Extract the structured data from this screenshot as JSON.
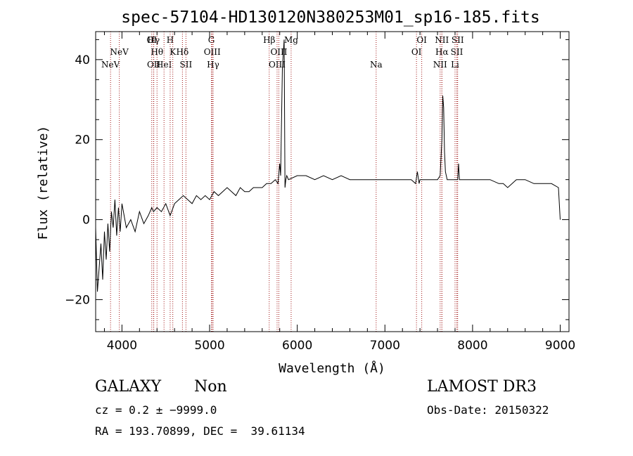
{
  "chart_data": {
    "type": "line",
    "title": "spec-57104-HD130120N380253M01_sp16-185.fits",
    "xlabel": "Wavelength (Å)",
    "ylabel": "Flux (relative)",
    "xlim": [
      3700,
      9100
    ],
    "ylim": [
      -28,
      47
    ],
    "xticks": [
      4000,
      5000,
      6000,
      7000,
      8000,
      9000
    ],
    "yticks": [
      -20,
      0,
      20,
      40
    ],
    "grid": false,
    "line_color": "#000000",
    "marker_color": "#a01414",
    "series": [
      {
        "x": [
          3700,
          3720,
          3740,
          3760,
          3780,
          3800,
          3820,
          3840,
          3860,
          3880,
          3900,
          3920,
          3940,
          3960,
          3980,
          4000,
          4050,
          4100,
          4150,
          4200,
          4250,
          4300,
          4340,
          4360,
          4400,
          4450,
          4500,
          4550,
          4600,
          4650,
          4700,
          4750,
          4800,
          4850,
          4900,
          4950,
          5000,
          5050,
          5100,
          5150,
          5200,
          5250,
          5300,
          5350,
          5400,
          5450,
          5500,
          5550,
          5600,
          5650,
          5700,
          5750,
          5780,
          5800,
          5810,
          5830,
          5850,
          5860,
          5870,
          5880,
          5900,
          6000,
          6100,
          6200,
          6300,
          6400,
          6500,
          6600,
          6700,
          6800,
          6900,
          7000,
          7100,
          7200,
          7300,
          7350,
          7370,
          7390,
          7400,
          7500,
          7600,
          7630,
          7650,
          7660,
          7670,
          7680,
          7690,
          7710,
          7750,
          7800,
          7830,
          7840,
          7850,
          7860,
          7870,
          7900,
          8000,
          8100,
          8200,
          8300,
          8350,
          8400,
          8500,
          8600,
          8700,
          8800,
          8900,
          8980,
          9000
        ],
        "y": [
          -2,
          -18,
          -12,
          -6,
          -15,
          -3,
          -10,
          -1,
          -8,
          2,
          -2,
          5,
          -4,
          3,
          -3,
          4,
          -2,
          0,
          -3,
          2,
          -1,
          1,
          3,
          2,
          3,
          2,
          4,
          1,
          4,
          5,
          6,
          5,
          4,
          6,
          5,
          6,
          5,
          7,
          6,
          7,
          8,
          7,
          6,
          8,
          7,
          7,
          8,
          8,
          8,
          9,
          9,
          10,
          9,
          14,
          11,
          38,
          45,
          8,
          10,
          11,
          10,
          11,
          11,
          10,
          11,
          10,
          11,
          10,
          10,
          10,
          10,
          10,
          10,
          10,
          10,
          9,
          12,
          9,
          10,
          10,
          10,
          11,
          20,
          31,
          28,
          17,
          12,
          10,
          10,
          10,
          10,
          14,
          10,
          10,
          10,
          10,
          10,
          10,
          10,
          9,
          9,
          8,
          10,
          10,
          9,
          9,
          9,
          8,
          0
        ]
      }
    ],
    "lines": [
      {
        "x": 3870,
        "label": "NeV",
        "row": 3
      },
      {
        "x": 3970,
        "label": "NeV",
        "row": 2
      },
      {
        "x": 4340,
        "label": "OI",
        "row": 1
      },
      {
        "x": 4361,
        "label": "Hγ",
        "row": 1
      },
      {
        "x": 4363,
        "label": "OII",
        "row": 3
      },
      {
        "x": 4400,
        "label": "Hθ",
        "row": 2
      },
      {
        "x": 4480,
        "label": "HeI",
        "row": 3
      },
      {
        "x": 4550,
        "label": "H",
        "row": 1
      },
      {
        "x": 4580,
        "label": "K",
        "row": 2
      },
      {
        "x": 4690,
        "label": "Hδ",
        "row": 2
      },
      {
        "x": 4730,
        "label": "SII",
        "row": 3
      },
      {
        "x": 5020,
        "label": "G",
        "row": 1
      },
      {
        "x": 5030,
        "label": "OIII",
        "row": 2
      },
      {
        "x": 5040,
        "label": "Hγ",
        "row": 3
      },
      {
        "x": 5680,
        "label": "Hβ",
        "row": 1
      },
      {
        "x": 5790,
        "label": "OIII",
        "row": 2
      },
      {
        "x": 5770,
        "label": "OIII",
        "row": 3
      },
      {
        "x": 5930,
        "label": "Mg",
        "row": 1
      },
      {
        "x": 6900,
        "label": "Na",
        "row": 3
      },
      {
        "x": 7420,
        "label": "OI",
        "row": 1
      },
      {
        "x": 7360,
        "label": "OI",
        "row": 2
      },
      {
        "x": 7650,
        "label": "NII",
        "row": 1
      },
      {
        "x": 7650,
        "label": "Hα",
        "row": 2
      },
      {
        "x": 7630,
        "label": "NII",
        "row": 3
      },
      {
        "x": 7830,
        "label": "SII",
        "row": 1
      },
      {
        "x": 7820,
        "label": "SII",
        "row": 2
      },
      {
        "x": 7800,
        "label": "Li",
        "row": 3
      }
    ]
  },
  "info": {
    "object_class": "GALAXY",
    "subclass": "Non",
    "survey": "LAMOST DR3",
    "cz": "cz = 0.2 ± −9999.0",
    "obs_date": "Obs-Date: 20150322",
    "coords": "RA = 193.70899, DEC =  39.61134"
  }
}
